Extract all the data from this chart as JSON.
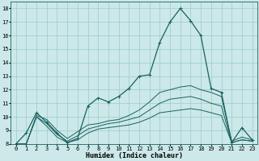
{
  "title": "",
  "xlabel": "Humidex (Indice chaleur)",
  "xlim": [
    -0.5,
    23.5
  ],
  "ylim": [
    8,
    18.5
  ],
  "yticks": [
    8,
    9,
    10,
    11,
    12,
    13,
    14,
    15,
    16,
    17,
    18
  ],
  "xticks": [
    0,
    1,
    2,
    3,
    4,
    5,
    6,
    7,
    8,
    9,
    10,
    11,
    12,
    13,
    14,
    15,
    16,
    17,
    18,
    19,
    20,
    21,
    22,
    23
  ],
  "bg_color": "#cce8e8",
  "grid_color": "#99cccc",
  "line_color": "#1a6060",
  "curves": [
    [
      0,
      8.0,
      1,
      8.8,
      2,
      10.3,
      3,
      9.6,
      4,
      8.8,
      5,
      8.1,
      6,
      8.4,
      7,
      10.8,
      8,
      11.4,
      9,
      11.1,
      10,
      11.5,
      11,
      12.1,
      12,
      13.0,
      13,
      13.1,
      14,
      15.5,
      15,
      17.0,
      16,
      18.0,
      17,
      17.1,
      18,
      16.0,
      19,
      12.1,
      20,
      11.8,
      21,
      8.1,
      22,
      9.2,
      23,
      8.3
    ],
    [
      0,
      8.0,
      1,
      8.0,
      2,
      10.1,
      3,
      9.8,
      4,
      9.0,
      5,
      8.4,
      6,
      8.9,
      7,
      9.4,
      8,
      9.5,
      9,
      9.7,
      10,
      9.8,
      11,
      10.1,
      12,
      10.5,
      13,
      11.1,
      14,
      11.8,
      15,
      12.0,
      16,
      12.2,
      17,
      12.3,
      18,
      12.0,
      19,
      11.8,
      20,
      11.5,
      21,
      8.2,
      22,
      8.5,
      23,
      8.3
    ],
    [
      0,
      8.0,
      1,
      8.0,
      2,
      10.0,
      3,
      9.5,
      4,
      8.7,
      5,
      8.2,
      6,
      8.6,
      7,
      9.1,
      8,
      9.3,
      9,
      9.5,
      10,
      9.6,
      11,
      9.8,
      12,
      10.0,
      13,
      10.5,
      14,
      11.0,
      15,
      11.3,
      16,
      11.4,
      17,
      11.5,
      18,
      11.3,
      19,
      11.0,
      20,
      10.8,
      21,
      8.1,
      22,
      8.3,
      23,
      8.2
    ],
    [
      0,
      8.0,
      1,
      8.0,
      2,
      10.0,
      3,
      9.3,
      4,
      8.5,
      5,
      8.1,
      6,
      8.3,
      7,
      8.8,
      8,
      9.1,
      9,
      9.2,
      10,
      9.3,
      11,
      9.4,
      12,
      9.6,
      13,
      9.9,
      14,
      10.3,
      15,
      10.4,
      16,
      10.5,
      17,
      10.6,
      18,
      10.5,
      19,
      10.3,
      20,
      10.1,
      21,
      8.1,
      22,
      8.3,
      23,
      8.2
    ]
  ],
  "marker_curve_idx": 0,
  "xlabel_fontsize": 6.0,
  "tick_fontsize": 5.0,
  "linewidth_main": 0.9,
  "linewidth_other": 0.7
}
